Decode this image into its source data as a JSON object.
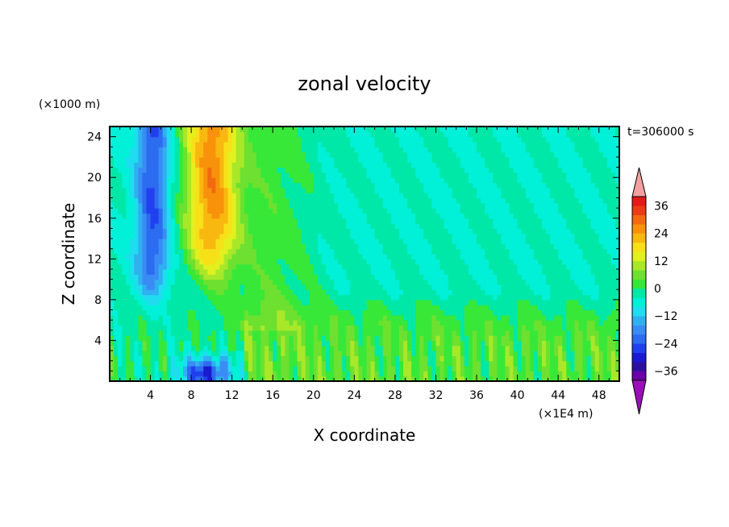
{
  "chart_data": {
    "type": "heatmap",
    "title": "zonal velocity",
    "xlabel": "X coordinate",
    "ylabel": "Z coordinate",
    "x_units": "(×1E4 m)",
    "y_units": "(×1000 m)",
    "time_label": "t=306000 s",
    "xlim": [
      0,
      50
    ],
    "ylim": [
      0,
      25
    ],
    "x_ticks": [
      4,
      8,
      12,
      16,
      20,
      24,
      28,
      32,
      36,
      40,
      44,
      48
    ],
    "y_ticks": [
      4,
      8,
      12,
      16,
      20,
      24
    ],
    "colorbar": {
      "levels": [
        -40,
        -36,
        -32,
        -28,
        -24,
        -20,
        -16,
        -12,
        -8,
        -4,
        0,
        4,
        8,
        12,
        16,
        20,
        24,
        28,
        32,
        36,
        40
      ],
      "tick_labels": [
        36,
        24,
        12,
        0,
        -12,
        -24,
        -36
      ],
      "colors": [
        "#6a00a8",
        "#2d0fa0",
        "#1a1ad0",
        "#2040ee",
        "#2c6cf0",
        "#3a8cf5",
        "#30b0f0",
        "#20dcf0",
        "#00f0d8",
        "#00e8a8",
        "#38e838",
        "#6ee030",
        "#a8e828",
        "#e2f020",
        "#f8e018",
        "#f8b810",
        "#f8920a",
        "#f26a10",
        "#ea3c14",
        "#e41a1a"
      ],
      "over_color": "#f4a0a0",
      "under_color": "#9a10b8"
    },
    "field_description": [
      {
        "region": "x 2-6, z 8-25",
        "value": -20
      },
      {
        "region": "x 6-14, z 10-25",
        "value": 24
      },
      {
        "region": "x 7-12, z 0-3",
        "value": -30
      },
      {
        "region": "x 20-50, z 8-25",
        "value": -6
      },
      {
        "region": "x 14-50, z 0-8",
        "value": 2
      }
    ]
  }
}
